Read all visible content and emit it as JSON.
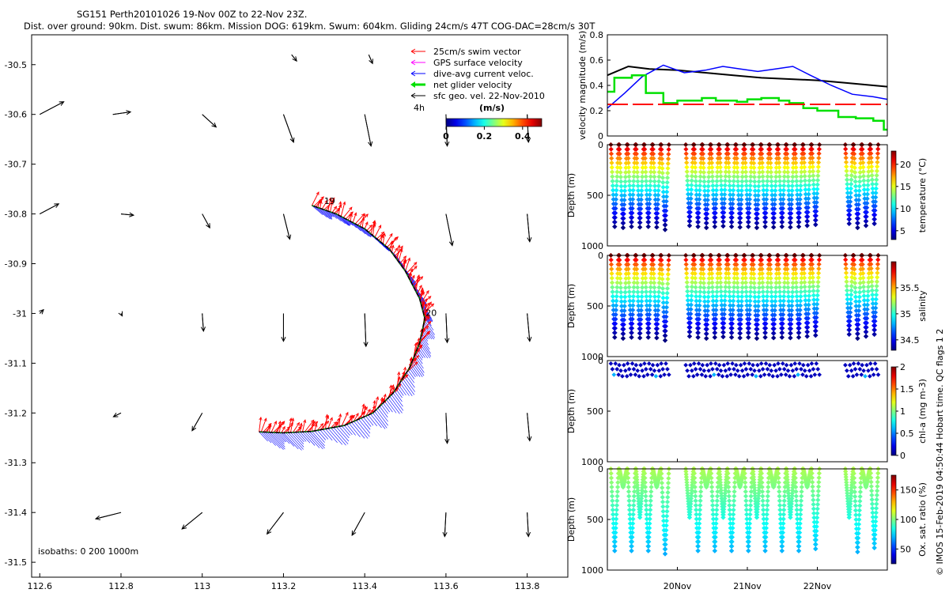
{
  "title_line1": "SG151 Perth20101026 19-Nov 00Z to 22-Nov 23Z.",
  "title_line2": "Dist. over ground: 90km. Dist. swum: 86km. Mission DOG: 619km. Swum: 604km. Gliding 24cm/s 47T COG-DAC=28cm/s 30T",
  "watermark": "© IMOS 15-Feb-2019 04:50:44 Hobart time. QC flags 1 2",
  "chart_data": [
    {
      "id": "map",
      "type": "scatter",
      "title": "",
      "xlabel": "",
      "ylabel": "",
      "xlim": [
        112.58,
        113.9
      ],
      "ylim": [
        -31.53,
        -30.44
      ],
      "xticks": [
        112.6,
        112.8,
        113,
        113.2,
        113.4,
        113.6,
        113.8
      ],
      "xtick_labels": [
        "112.6",
        "112.8",
        "113",
        "113.2",
        "113.4",
        "113.6",
        "113.8"
      ],
      "yticks": [
        -30.5,
        -30.6,
        -30.7,
        -30.8,
        -30.9,
        -31,
        -31.1,
        -31.2,
        -31.3,
        -31.4,
        -31.5
      ],
      "ytick_labels": [
        "-30.5",
        "-30.6",
        "-30.7",
        "-30.8",
        "-30.9",
        "-31",
        "-31.1",
        "-31.2",
        "-31.3",
        "-31.4",
        "-31.5"
      ],
      "legend": [
        {
          "label": "25cm/s swim vector",
          "color": "#ff0000"
        },
        {
          "label": "GPS surface velocity",
          "color": "#ff00ff"
        },
        {
          "label": "dive-avg current veloc.",
          "color": "#0000ff"
        },
        {
          "label": "net glider velocity",
          "color": "#00e000"
        },
        {
          "label": "sfc geo. vel. 22-Nov-2010",
          "color": "#000000"
        }
      ],
      "legend_position": "top-right",
      "scale_label": "4h",
      "colorbar": {
        "title": "(m/s)",
        "range": [
          0,
          0.5
        ],
        "ticks": [
          0,
          0.2,
          0.4
        ],
        "tick_labels": [
          "0",
          "0.2",
          "0.4"
        ]
      },
      "isobaths_label": "isobaths: 0   200  1000m",
      "track_labels": [
        {
          "text": "19",
          "lon": 113.3,
          "lat": -30.78
        },
        {
          "text": "20",
          "lon": 113.55,
          "lat": -31.005
        }
      ],
      "track": [
        {
          "lon": 113.27,
          "lat": -30.783
        },
        {
          "lon": 113.33,
          "lat": -30.8
        },
        {
          "lon": 113.4,
          "lat": -30.83
        },
        {
          "lon": 113.46,
          "lat": -30.87
        },
        {
          "lon": 113.5,
          "lat": -30.915
        },
        {
          "lon": 113.535,
          "lat": -30.97
        },
        {
          "lon": 113.548,
          "lat": -31.01
        },
        {
          "lon": 113.535,
          "lat": -31.06
        },
        {
          "lon": 113.51,
          "lat": -31.11
        },
        {
          "lon": 113.47,
          "lat": -31.16
        },
        {
          "lon": 113.42,
          "lat": -31.2
        },
        {
          "lon": 113.35,
          "lat": -31.225
        },
        {
          "lon": 113.27,
          "lat": -31.237
        },
        {
          "lon": 113.2,
          "lat": -31.24
        },
        {
          "lon": 113.14,
          "lat": -31.238
        }
      ],
      "geostrophic_arrows": [
        {
          "lon": 112.6,
          "lat": -30.6,
          "u": 0.19,
          "v": 0.1
        },
        {
          "lon": 112.78,
          "lat": -30.6,
          "u": 0.14,
          "v": 0.02
        },
        {
          "lon": 113,
          "lat": -30.6,
          "u": 0.11,
          "v": -0.1
        },
        {
          "lon": 113.2,
          "lat": -30.6,
          "u": 0.08,
          "v": -0.22
        },
        {
          "lon": 113.4,
          "lat": -30.6,
          "u": 0.05,
          "v": -0.25
        },
        {
          "lon": 113.6,
          "lat": -30.6,
          "u": 0.01,
          "v": -0.25
        },
        {
          "lon": 113.8,
          "lat": -30.6,
          "u": 0.01,
          "v": -0.22
        },
        {
          "lon": 113.22,
          "lat": -30.48,
          "u": 0.04,
          "v": -0.05
        },
        {
          "lon": 113.41,
          "lat": -30.48,
          "u": 0.03,
          "v": -0.07
        },
        {
          "lon": 112.6,
          "lat": -30.8,
          "u": 0.15,
          "v": 0.08
        },
        {
          "lon": 112.8,
          "lat": -30.8,
          "u": 0.1,
          "v": -0.01
        },
        {
          "lon": 113,
          "lat": -30.8,
          "u": 0.06,
          "v": -0.11
        },
        {
          "lon": 113.2,
          "lat": -30.8,
          "u": 0.05,
          "v": -0.2
        },
        {
          "lon": 113.6,
          "lat": -30.8,
          "u": 0.05,
          "v": -0.25
        },
        {
          "lon": 113.8,
          "lat": -30.8,
          "u": 0.02,
          "v": -0.22
        },
        {
          "lon": 112.6,
          "lat": -31,
          "u": 0.03,
          "v": 0.03
        },
        {
          "lon": 112.8,
          "lat": -31,
          "u": 0.01,
          "v": -0.02
        },
        {
          "lon": 113,
          "lat": -31,
          "u": 0.01,
          "v": -0.14
        },
        {
          "lon": 113.2,
          "lat": -31,
          "u": 0,
          "v": -0.22
        },
        {
          "lon": 113.4,
          "lat": -31,
          "u": 0.01,
          "v": -0.26
        },
        {
          "lon": 113.6,
          "lat": -31,
          "u": 0.01,
          "v": -0.23
        },
        {
          "lon": 113.8,
          "lat": -31,
          "u": 0.02,
          "v": -0.22
        },
        {
          "lon": 112.8,
          "lat": -31.2,
          "u": -0.06,
          "v": -0.03
        },
        {
          "lon": 113,
          "lat": -31.2,
          "u": -0.08,
          "v": -0.14
        },
        {
          "lon": 113.6,
          "lat": -31.2,
          "u": 0.01,
          "v": -0.24
        },
        {
          "lon": 113.8,
          "lat": -31.2,
          "u": 0.02,
          "v": -0.22
        },
        {
          "lon": 112.8,
          "lat": -31.4,
          "u": -0.2,
          "v": -0.05
        },
        {
          "lon": 113,
          "lat": -31.4,
          "u": -0.16,
          "v": -0.13
        },
        {
          "lon": 113.2,
          "lat": -31.4,
          "u": -0.13,
          "v": -0.17
        },
        {
          "lon": 113.4,
          "lat": -31.4,
          "u": -0.1,
          "v": -0.18
        },
        {
          "lon": 113.6,
          "lat": -31.4,
          "u": -0.01,
          "v": -0.19
        },
        {
          "lon": 113.8,
          "lat": -31.4,
          "u": 0.01,
          "v": -0.19
        }
      ]
    },
    {
      "id": "velocity",
      "type": "line",
      "ylabel": "velocity magnitude (m/s)",
      "xlim": [
        19.0,
        23.0
      ],
      "ylim": [
        0,
        0.8
      ],
      "yticks": [
        0,
        0.2,
        0.4,
        0.6,
        0.8
      ],
      "ytick_labels": [
        "0",
        "0.2",
        "0.4",
        "0.6",
        "0.8"
      ],
      "series": [
        {
          "name": "sfc geo. vel.",
          "color": "#000000",
          "x": [
            19.0,
            19.3,
            19.6,
            20.0,
            20.4,
            20.8,
            21.2,
            21.6,
            22.0,
            22.4,
            22.8,
            23.0
          ],
          "y": [
            0.48,
            0.55,
            0.53,
            0.52,
            0.5,
            0.48,
            0.46,
            0.45,
            0.44,
            0.42,
            0.4,
            0.39
          ]
        },
        {
          "name": "dive-avg current veloc.",
          "color": "#0000ff",
          "x": [
            19.0,
            19.25,
            19.5,
            19.8,
            20.1,
            20.4,
            20.65,
            20.9,
            21.15,
            21.4,
            21.65,
            21.9,
            22.2,
            22.5,
            22.8,
            23.0
          ],
          "y": [
            0.22,
            0.34,
            0.47,
            0.56,
            0.5,
            0.52,
            0.55,
            0.53,
            0.51,
            0.53,
            0.55,
            0.48,
            0.4,
            0.33,
            0.31,
            0.29
          ]
        },
        {
          "name": "net glider velocity",
          "color": "#00e000",
          "x": [
            19.0,
            19.1,
            19.1,
            19.35,
            19.35,
            19.55,
            19.55,
            19.8,
            19.8,
            20.0,
            20.0,
            20.35,
            20.35,
            20.55,
            20.55,
            20.85,
            20.85,
            21.0,
            21.0,
            21.2,
            21.2,
            21.45,
            21.45,
            21.6,
            21.6,
            21.8,
            21.8,
            22.0,
            22.0,
            22.3,
            22.3,
            22.55,
            22.55,
            22.8,
            22.8,
            22.95,
            22.95,
            23.0
          ],
          "y": [
            0.35,
            0.35,
            0.46,
            0.46,
            0.48,
            0.48,
            0.34,
            0.34,
            0.26,
            0.26,
            0.28,
            0.28,
            0.3,
            0.3,
            0.28,
            0.28,
            0.27,
            0.27,
            0.29,
            0.29,
            0.3,
            0.3,
            0.28,
            0.28,
            0.26,
            0.26,
            0.22,
            0.22,
            0.2,
            0.2,
            0.15,
            0.15,
            0.14,
            0.14,
            0.12,
            0.12,
            0.05,
            0.05
          ]
        },
        {
          "name": "25cm/s swim vector",
          "color": "#ff0000",
          "dashed": true,
          "x": [
            19.0,
            23.0
          ],
          "y": [
            0.25,
            0.25
          ]
        }
      ]
    },
    {
      "id": "temperature",
      "type": "scatter",
      "ylabel": "Depth (m)",
      "ylim": [
        1000,
        0
      ],
      "yticks": [
        0,
        500,
        1000
      ],
      "ytick_labels": [
        "0",
        "500",
        "1000"
      ],
      "colorbar": {
        "label": "temperature (°C)",
        "range": [
          3,
          23
        ],
        "ticks": [
          5,
          10,
          15,
          20
        ],
        "tick_labels": [
          "5",
          "10",
          "15",
          "20"
        ]
      }
    },
    {
      "id": "salinity",
      "type": "scatter",
      "ylabel": "Depth (m)",
      "ylim": [
        1000,
        0
      ],
      "yticks": [
        0,
        500,
        1000
      ],
      "ytick_labels": [
        "0",
        "500",
        "1000"
      ],
      "colorbar": {
        "label": "salinity",
        "range": [
          34.3,
          36.0
        ],
        "ticks": [
          34.5,
          35,
          35.5
        ],
        "tick_labels": [
          "34.5",
          "35",
          "35.5"
        ]
      }
    },
    {
      "id": "chla",
      "type": "scatter",
      "ylabel": "Depth (m)",
      "ylim": [
        1000,
        0
      ],
      "yticks": [
        0,
        500,
        1000
      ],
      "ytick_labels": [
        "0",
        "500",
        "1000"
      ],
      "colorbar": {
        "label": "chl-a (mg m-3)",
        "range": [
          0,
          2
        ],
        "ticks": [
          0,
          0.5,
          1,
          1.5,
          2
        ],
        "tick_labels": [
          "0",
          "0.5",
          "1",
          "1.5",
          "2"
        ]
      }
    },
    {
      "id": "oxygen",
      "type": "scatter",
      "ylabel": "Depth (m)",
      "ylim": [
        1000,
        0
      ],
      "yticks": [
        0,
        500,
        1000
      ],
      "ytick_labels": [
        "0",
        "500",
        "1000"
      ],
      "colorbar": {
        "label": "Ox. sat. ratio (%)",
        "range": [
          25,
          175
        ],
        "ticks": [
          50,
          100,
          150
        ],
        "tick_labels": [
          "50",
          "100",
          "150"
        ]
      }
    }
  ],
  "time_axis": {
    "xlim": [
      19.0,
      23.0
    ],
    "ticks": [
      20,
      21,
      22
    ],
    "tick_labels": [
      "20Nov",
      "21Nov",
      "22Nov"
    ]
  },
  "dives": {
    "start_days": [
      19.05,
      19.17,
      19.29,
      19.41,
      19.53,
      19.65,
      19.77,
      20.12,
      20.24,
      20.36,
      20.48,
      20.6,
      20.72,
      20.84,
      20.96,
      21.08,
      21.2,
      21.32,
      21.44,
      21.56,
      21.68,
      21.8,
      21.92,
      22.4,
      22.52,
      22.64,
      22.76
    ],
    "max_depths": [
      810,
      820,
      810,
      815,
      810,
      815,
      840,
      800,
      810,
      820,
      810,
      805,
      810,
      815,
      810,
      820,
      810,
      815,
      810,
      815,
      810,
      800,
      790,
      780,
      820,
      800,
      780
    ]
  }
}
